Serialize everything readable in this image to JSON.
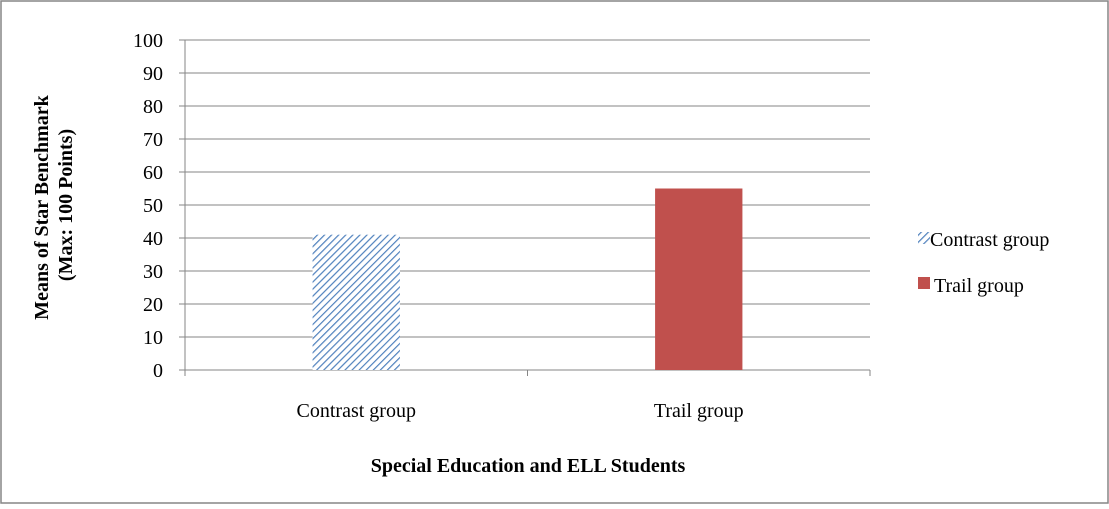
{
  "chart_data": {
    "type": "bar",
    "categories": [
      "Contrast group",
      "Trail group"
    ],
    "values": [
      41,
      55
    ],
    "xlabel": "Special Education and ELL Students",
    "ylabel_lines": [
      "Means of Star Benchmark",
      "(Max: 100 Points)"
    ],
    "ylim": [
      0,
      100
    ],
    "yticks": [
      0,
      10,
      20,
      30,
      40,
      50,
      60,
      70,
      80,
      90,
      100
    ],
    "grid": true,
    "legend": {
      "position": "right",
      "entries": [
        {
          "label": "Contrast group",
          "fill": "hatched",
          "color": "#4F81BD"
        },
        {
          "label": "Trail group",
          "fill": "solid",
          "color": "#C0504D"
        }
      ]
    }
  }
}
